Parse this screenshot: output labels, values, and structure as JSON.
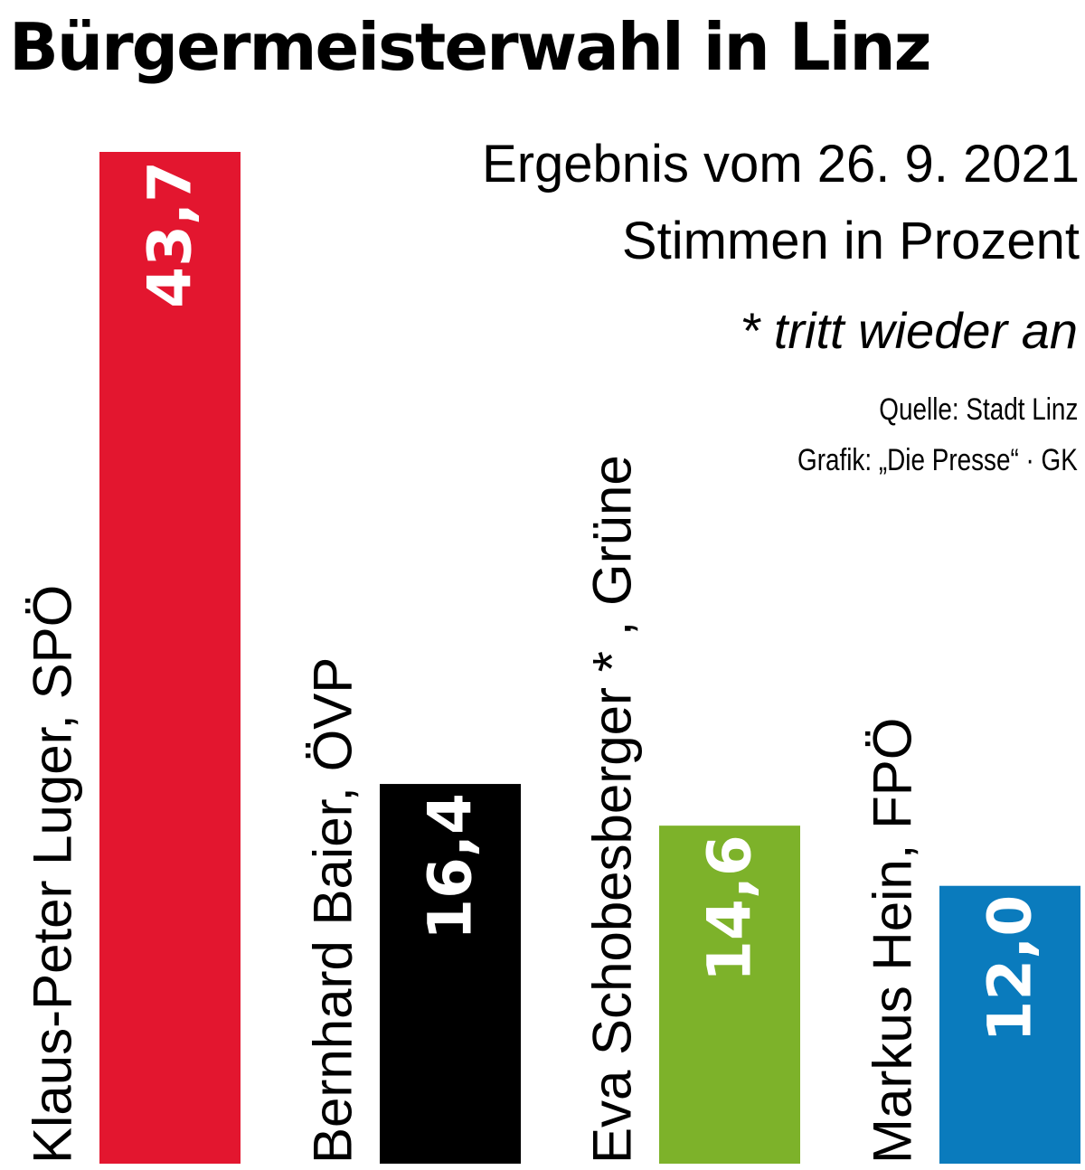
{
  "chart_data": {
    "type": "bar",
    "title": "Bürgermeisterwahl in Linz",
    "subtitle": "Ergebnis vom 26. 9. 2021",
    "ylabel": "Stimmen in Prozent",
    "note": "* tritt wieder an",
    "source": "Quelle: Stadt Linz",
    "credit": "Grafik: „Die Presse“ · GK",
    "categories": [
      "Klaus-Peter Luger, SPÖ",
      "Bernhard Baier, ÖVP",
      "Eva Schobesberger * , Grüne",
      "Markus Hein, FPÖ"
    ],
    "values": [
      43.7,
      16.4,
      14.6,
      12.0
    ],
    "value_labels": [
      "43,7",
      "16,4",
      "14,6",
      "12,0"
    ],
    "colors": [
      "#e3162f",
      "#000000",
      "#7db22a",
      "#0a7bbd"
    ],
    "ylim": [
      0,
      43.7
    ],
    "grid": false,
    "legend": "none"
  }
}
